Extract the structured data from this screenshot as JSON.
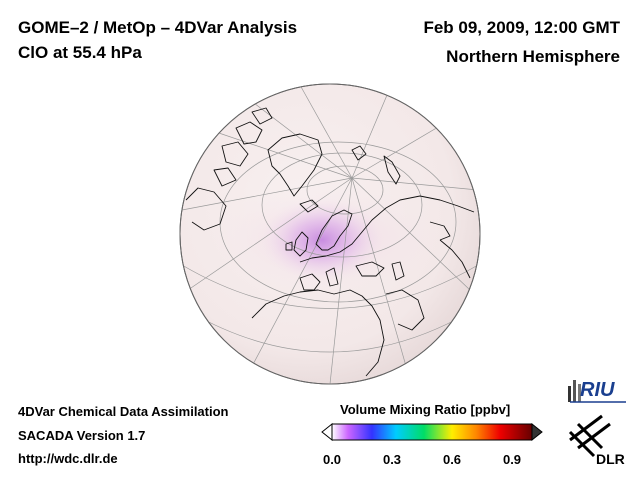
{
  "header": {
    "title_line1": "GOME–2 / MetOp – 4DVar Analysis",
    "title_line2": "ClO at 55.4 hPa",
    "date": "Feb 09, 2009, 12:00 GMT",
    "region": "Northern Hemisphere"
  },
  "footer": {
    "line1": "4DVar Chemical Data Assimilation",
    "line2": "SACADA Version 1.7",
    "line3": "http://wdc.dlr.de"
  },
  "colorbar": {
    "title": "Volume Mixing Ratio [ppbv]",
    "ticks": [
      "0.0",
      "0.3",
      "0.6",
      "0.9"
    ],
    "tick_values": [
      0.0,
      0.3,
      0.6,
      0.9
    ],
    "range": [
      0.0,
      1.0
    ],
    "colors": [
      "#ffffff",
      "#cc66ff",
      "#3333ff",
      "#00ccff",
      "#00dd66",
      "#ffee00",
      "#ff8800",
      "#ee0000",
      "#660000"
    ]
  },
  "logos": {
    "riu": "RIU",
    "dlr": "DLR"
  },
  "map": {
    "projection": "orthographic",
    "background_color": "#f6eeee",
    "enhancement_color": "#c98be6"
  }
}
